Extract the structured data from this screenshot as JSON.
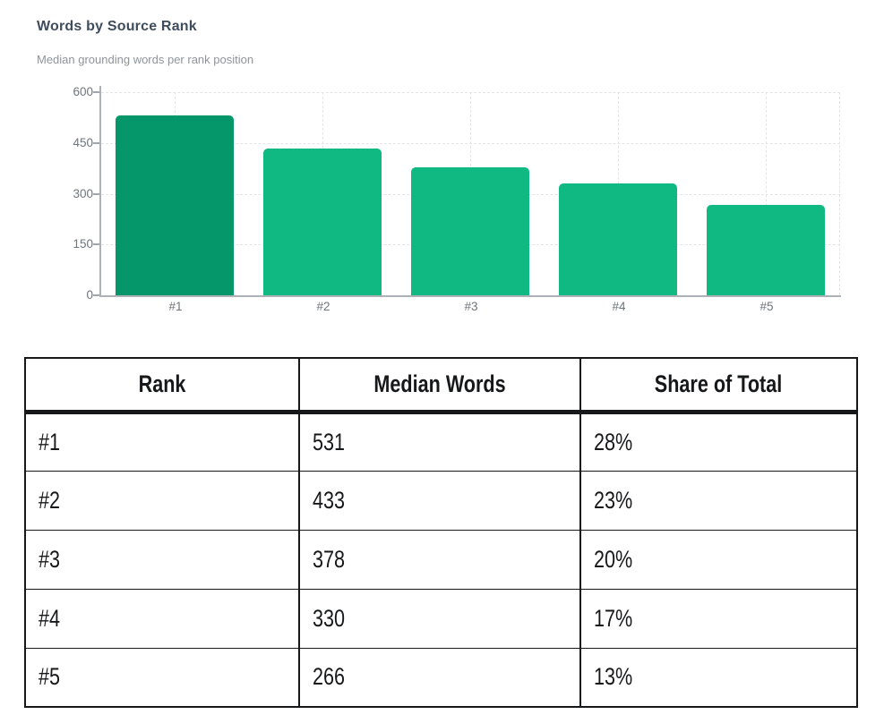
{
  "header": {
    "title": "Words by Source Rank",
    "subtitle": "Median grounding words per rank position"
  },
  "chart_data": {
    "type": "bar",
    "title": "Words by Source Rank",
    "subtitle": "Median grounding words per rank position",
    "categories": [
      "#1",
      "#2",
      "#3",
      "#4",
      "#5"
    ],
    "values": [
      531,
      433,
      378,
      330,
      266
    ],
    "xlabel": "",
    "ylabel": "",
    "ylim": [
      0,
      600
    ],
    "yticks": [
      0,
      150,
      300,
      450,
      600
    ],
    "grid": true,
    "legend": "none",
    "bar_colors": [
      "#059669",
      "#10b981",
      "#10b981",
      "#10b981",
      "#10b981"
    ]
  },
  "table": {
    "columns": [
      "Rank",
      "Median Words",
      "Share of Total"
    ],
    "rows": [
      {
        "rank": "#1",
        "median_words": "531",
        "share_of_total": "28%"
      },
      {
        "rank": "#2",
        "median_words": "433",
        "share_of_total": "23%"
      },
      {
        "rank": "#3",
        "median_words": "378",
        "share_of_total": "20%"
      },
      {
        "rank": "#4",
        "median_words": "330",
        "share_of_total": "17%"
      },
      {
        "rank": "#5",
        "median_words": "266",
        "share_of_total": "13%"
      }
    ]
  },
  "colors": {
    "bar_primary": "#059669",
    "bar_secondary": "#10b981",
    "title_text": "#3e4c5b",
    "subtitle_text": "#8e949b",
    "axis_text": "#6f757c",
    "axis_line": "#aeb2b7",
    "gridline": "#e3e4e8",
    "table_border": "#17181a",
    "background": "#ffffff"
  }
}
